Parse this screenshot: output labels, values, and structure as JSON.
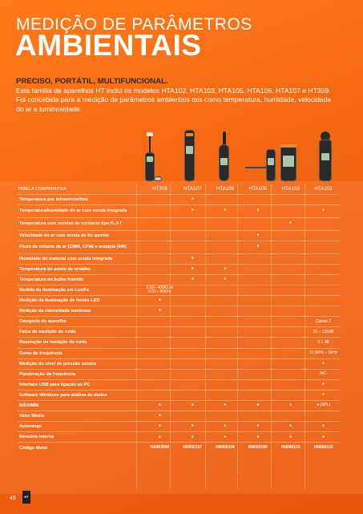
{
  "header": {
    "title_top": "MEDIÇÃO DE PARÂMETROS",
    "title_main": "AMBIENTAIS",
    "subtitle": "PRECISO, PORTÁTIL, MULTIFUNCIONAL.",
    "intro": "Esta família de aparelhos HT inclui os modelos HTA102, HTA103, HTA105, HTA106, HTA107 e HT309. Foi concebida para a medição de parâmetros ambientais tais como temperatura, humidade, velocidade do ar e luminosidade."
  },
  "table": {
    "heading": "TABELA COMPARATIVA",
    "models": [
      "HT309",
      "HTA107",
      "HTA106",
      "HTA105",
      "HTA103",
      "HTA102"
    ],
    "rows": [
      {
        "label": "Temperatura por infravermelhos",
        "cells": [
          "",
          "●",
          "",
          "",
          "",
          ""
        ]
      },
      {
        "label": "Temperatura/humidade do ar com sonda integrada",
        "cells": [
          "",
          "●",
          "●",
          "●",
          "",
          "●"
        ]
      },
      {
        "label": "Temperatura com sondas de contacto tipo K-J-T",
        "cells": [
          "",
          "",
          "",
          "",
          "●",
          ""
        ]
      },
      {
        "label": "Velocidade do ar com sonda de fio quente",
        "cells": [
          "",
          "",
          "",
          "●",
          "",
          ""
        ]
      },
      {
        "label": "Fluxo de volume de ar (CMM, CFM) e entalpia (kW)",
        "cells": [
          "",
          "",
          "",
          "●",
          "",
          ""
        ]
      },
      {
        "label": "Humidade do material com sonda integrada",
        "cells": [
          "",
          "●",
          "",
          "",
          "",
          ""
        ]
      },
      {
        "label": "Temperatura do ponto de orvalho",
        "cells": [
          "",
          "●",
          "●",
          "",
          "",
          ""
        ]
      },
      {
        "label": "Temperatura do bulbo húmido",
        "cells": [
          "",
          "●",
          "●",
          "",
          "",
          ""
        ]
      },
      {
        "label": "Medida de iluminação em Lux/Fc",
        "cells": [
          "0.01÷ 400KLux\n0.01÷ 40KFc",
          "",
          "",
          "",
          "",
          ""
        ]
      },
      {
        "label": "Medição da iluminação de fontes LED",
        "cells": [
          "●",
          "",
          "",
          "",
          "",
          ""
        ]
      },
      {
        "label": "Medição da intensidade luminosa",
        "cells": [
          "●",
          "",
          "",
          "",
          "",
          ""
        ]
      },
      {
        "label": "Categoria do aparelho",
        "cells": [
          "",
          "",
          "",
          "",
          "",
          "Classe 2"
        ]
      },
      {
        "label": "Faixa de medição do ruído",
        "cells": [
          "",
          "",
          "",
          "",
          "",
          "30 ÷ 130dB"
        ]
      },
      {
        "label": "Resolução da medição do ruído",
        "cells": [
          "",
          "",
          "",
          "",
          "",
          "0.1 dB"
        ]
      },
      {
        "label": "Gama de frequência",
        "cells": [
          "",
          "",
          "",
          "",
          "",
          "31.5kHz ÷ 8kHz"
        ]
      },
      {
        "label": "Medição do nível de pressão sonora",
        "cells": [
          "",
          "",
          "",
          "",
          "",
          "●"
        ]
      },
      {
        "label": "Ponderação da frequência",
        "cells": [
          "",
          "",
          "",
          "",
          "",
          "A/C"
        ]
      },
      {
        "label": "Interface USB para ligação ao PC",
        "cells": [
          "",
          "",
          "",
          "",
          "",
          "●"
        ]
      },
      {
        "label": "Software Windows para análise de dados",
        "cells": [
          "",
          "",
          "",
          "",
          "",
          "●"
        ]
      },
      {
        "label": "MÁX/MÍN",
        "cells": [
          "●",
          "●",
          "●",
          "●",
          "●",
          "● (SPL)"
        ]
      },
      {
        "label": "Valor Médio",
        "cells": [
          "●",
          "",
          "",
          "",
          "",
          ""
        ]
      },
      {
        "label": "Autorange",
        "cells": [
          "●",
          "●",
          "●",
          "●",
          "●",
          "●"
        ]
      },
      {
        "label": "Memória interna",
        "cells": [
          "●",
          "●",
          "●",
          "●",
          "●",
          "●"
        ]
      },
      {
        "label": "Código Metel",
        "cells": [
          "HA003090",
          "HN000107",
          "HN000106",
          "HN000105",
          "HN000103",
          "HN000102"
        ],
        "is_code": true
      }
    ]
  },
  "footer": {
    "page_number": "48",
    "logo_text": "HT"
  }
}
